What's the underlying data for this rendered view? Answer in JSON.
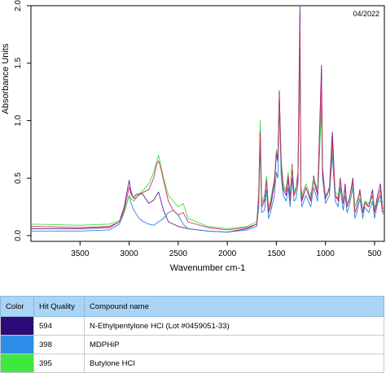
{
  "chart_data": {
    "type": "line",
    "title": "",
    "annotation": "04/2022",
    "xlabel": "Wavenumber cm-1",
    "ylabel": "Absorbance Units",
    "xlim": [
      4000,
      400
    ],
    "ylim": [
      -0.05,
      2.0
    ],
    "x_reversed": true,
    "xticks": [
      3500,
      3000,
      2500,
      2000,
      1500,
      1000,
      500
    ],
    "yticks": [
      0.0,
      0.5,
      1.0,
      1.5,
      2.0
    ],
    "ytick_labels": [
      "0.0",
      "0.5",
      "1.0",
      "1.5",
      "2.0"
    ],
    "grid": false,
    "series": [
      {
        "name": "N-Ethylpentylone HCl (Lot #0459051-33)",
        "color": "#6a1a8a",
        "x": [
          4000,
          3500,
          3200,
          3100,
          3050,
          3000,
          2980,
          2960,
          2920,
          2870,
          2800,
          2750,
          2700,
          2650,
          2600,
          2500,
          2400,
          2200,
          2000,
          1800,
          1700,
          1680,
          1665,
          1650,
          1620,
          1600,
          1580,
          1560,
          1520,
          1500,
          1485,
          1470,
          1460,
          1450,
          1430,
          1400,
          1380,
          1360,
          1340,
          1320,
          1300,
          1280,
          1260,
          1250,
          1240,
          1200,
          1150,
          1120,
          1080,
          1040,
          1030,
          1000,
          960,
          930,
          900,
          870,
          850,
          820,
          800,
          780,
          760,
          720,
          700,
          680,
          650,
          620,
          600,
          560,
          520,
          500,
          470,
          440,
          420,
          400
        ],
        "y": [
          0.06,
          0.06,
          0.07,
          0.12,
          0.25,
          0.48,
          0.38,
          0.33,
          0.36,
          0.37,
          0.28,
          0.31,
          0.38,
          0.22,
          0.12,
          0.08,
          0.06,
          0.04,
          0.03,
          0.06,
          0.1,
          0.35,
          0.95,
          0.25,
          0.3,
          0.5,
          0.2,
          0.25,
          0.45,
          0.7,
          0.65,
          1.26,
          0.9,
          0.6,
          0.4,
          0.35,
          0.5,
          0.3,
          0.62,
          0.35,
          0.4,
          0.55,
          1.99,
          0.4,
          0.3,
          0.42,
          0.3,
          0.52,
          0.35,
          1.48,
          0.6,
          0.32,
          0.42,
          0.9,
          0.35,
          0.32,
          0.5,
          0.28,
          0.45,
          0.25,
          0.3,
          0.5,
          0.2,
          0.25,
          0.4,
          0.2,
          0.3,
          0.25,
          0.4,
          0.2,
          0.35,
          0.45,
          0.25,
          0.22
        ]
      },
      {
        "name": "MDPHiP",
        "color": "#2e7fe0",
        "x": [
          4000,
          3500,
          3200,
          3100,
          3050,
          3000,
          2980,
          2950,
          2900,
          2850,
          2800,
          2750,
          2700,
          2650,
          2600,
          2550,
          2500,
          2450,
          2400,
          2200,
          2000,
          1800,
          1700,
          1680,
          1665,
          1650,
          1620,
          1600,
          1580,
          1560,
          1520,
          1500,
          1485,
          1470,
          1460,
          1450,
          1430,
          1400,
          1380,
          1360,
          1340,
          1320,
          1300,
          1280,
          1260,
          1250,
          1240,
          1200,
          1150,
          1120,
          1080,
          1040,
          1030,
          1000,
          960,
          930,
          900,
          870,
          850,
          820,
          800,
          780,
          760,
          720,
          700,
          680,
          650,
          620,
          600,
          560,
          520,
          500,
          470,
          440,
          420,
          400
        ],
        "y": [
          0.04,
          0.04,
          0.05,
          0.1,
          0.2,
          0.35,
          0.28,
          0.22,
          0.15,
          0.12,
          0.1,
          0.09,
          0.12,
          0.15,
          0.2,
          0.22,
          0.18,
          0.1,
          0.06,
          0.04,
          0.03,
          0.05,
          0.08,
          0.25,
          0.82,
          0.2,
          0.22,
          0.4,
          0.15,
          0.2,
          0.35,
          0.55,
          0.5,
          1.15,
          0.8,
          0.5,
          0.35,
          0.3,
          0.42,
          0.25,
          0.5,
          0.3,
          0.32,
          0.45,
          1.6,
          0.35,
          0.25,
          0.35,
          0.25,
          0.42,
          0.3,
          1.15,
          0.5,
          0.28,
          0.35,
          0.7,
          0.3,
          0.25,
          0.42,
          0.22,
          0.35,
          0.2,
          0.25,
          0.42,
          0.15,
          0.2,
          0.32,
          0.15,
          0.25,
          0.2,
          0.3,
          0.15,
          0.28,
          0.35,
          0.2,
          0.18
        ]
      },
      {
        "name": "Butylone HCl",
        "color": "#3fe03f",
        "x": [
          4000,
          3500,
          3200,
          3100,
          3050,
          3000,
          2980,
          2950,
          2900,
          2850,
          2800,
          2750,
          2700,
          2650,
          2600,
          2550,
          2500,
          2450,
          2400,
          2200,
          2000,
          1800,
          1700,
          1680,
          1665,
          1650,
          1620,
          1600,
          1580,
          1560,
          1520,
          1500,
          1485,
          1470,
          1460,
          1450,
          1430,
          1400,
          1380,
          1360,
          1340,
          1320,
          1300,
          1280,
          1260,
          1250,
          1240,
          1200,
          1150,
          1120,
          1080,
          1040,
          1030,
          1000,
          960,
          930,
          900,
          870,
          850,
          820,
          800,
          780,
          760,
          720,
          700,
          680,
          650,
          620,
          600,
          560,
          520,
          500,
          470,
          440,
          420,
          400
        ],
        "y": [
          0.1,
          0.09,
          0.1,
          0.13,
          0.2,
          0.35,
          0.32,
          0.3,
          0.36,
          0.4,
          0.45,
          0.55,
          0.7,
          0.5,
          0.35,
          0.3,
          0.25,
          0.28,
          0.15,
          0.08,
          0.06,
          0.08,
          0.12,
          0.4,
          1.0,
          0.3,
          0.35,
          0.52,
          0.25,
          0.3,
          0.5,
          0.75,
          0.7,
          1.2,
          0.95,
          0.65,
          0.45,
          0.4,
          0.55,
          0.35,
          0.6,
          0.38,
          0.42,
          0.5,
          1.5,
          0.45,
          0.35,
          0.45,
          0.35,
          0.5,
          0.4,
          1.1,
          0.55,
          0.35,
          0.4,
          0.75,
          0.38,
          0.35,
          0.48,
          0.3,
          0.4,
          0.28,
          0.32,
          0.45,
          0.25,
          0.3,
          0.38,
          0.22,
          0.3,
          0.28,
          0.35,
          0.25,
          0.3,
          0.3,
          0.25,
          0.22
        ]
      },
      {
        "name": "",
        "color": "#d03060",
        "x": [
          4000,
          3500,
          3200,
          3100,
          3050,
          3000,
          2980,
          2950,
          2900,
          2850,
          2800,
          2750,
          2720,
          2700,
          2680,
          2650,
          2600,
          2550,
          2500,
          2450,
          2400,
          2200,
          2000,
          1800,
          1700,
          1680,
          1665,
          1650,
          1620,
          1600,
          1580,
          1560,
          1520,
          1500,
          1485,
          1470,
          1460,
          1450,
          1430,
          1400,
          1380,
          1360,
          1340,
          1320,
          1300,
          1280,
          1260,
          1250,
          1240,
          1200,
          1150,
          1120,
          1080,
          1040,
          1030,
          1000,
          960,
          930,
          900,
          870,
          850,
          820,
          800,
          780,
          760,
          720,
          700,
          680,
          650,
          620,
          600,
          560,
          520,
          500,
          470,
          440,
          420,
          400
        ],
        "y": [
          0.08,
          0.07,
          0.08,
          0.12,
          0.22,
          0.42,
          0.36,
          0.32,
          0.35,
          0.38,
          0.4,
          0.5,
          0.62,
          0.65,
          0.6,
          0.48,
          0.3,
          0.22,
          0.18,
          0.2,
          0.12,
          0.07,
          0.05,
          0.07,
          0.1,
          0.32,
          0.9,
          0.28,
          0.32,
          0.48,
          0.22,
          0.28,
          0.48,
          0.72,
          0.68,
          1.22,
          0.92,
          0.62,
          0.42,
          0.38,
          0.52,
          0.32,
          0.58,
          0.35,
          0.4,
          0.5,
          1.85,
          0.42,
          0.32,
          0.42,
          0.32,
          0.48,
          0.35,
          1.38,
          0.55,
          0.32,
          0.4,
          0.82,
          0.35,
          0.3,
          0.48,
          0.28,
          0.42,
          0.25,
          0.3,
          0.48,
          0.2,
          0.25,
          0.38,
          0.2,
          0.28,
          0.25,
          0.35,
          0.2,
          0.3,
          0.4,
          0.22,
          0.2
        ]
      }
    ]
  },
  "hit_table": {
    "headers": {
      "color": "Color",
      "hit_quality": "Hit Quality",
      "compound_name": "Compound name"
    },
    "rows": [
      {
        "color": "#2d0a7a",
        "hit_quality": "594",
        "compound_name": "N-Ethylpentylone HCl (Lot #0459051-33)"
      },
      {
        "color": "#2e8de8",
        "hit_quality": "398",
        "compound_name": "MDPHiP"
      },
      {
        "color": "#3ee83e",
        "hit_quality": "395",
        "compound_name": "Butylone HCl"
      }
    ]
  }
}
